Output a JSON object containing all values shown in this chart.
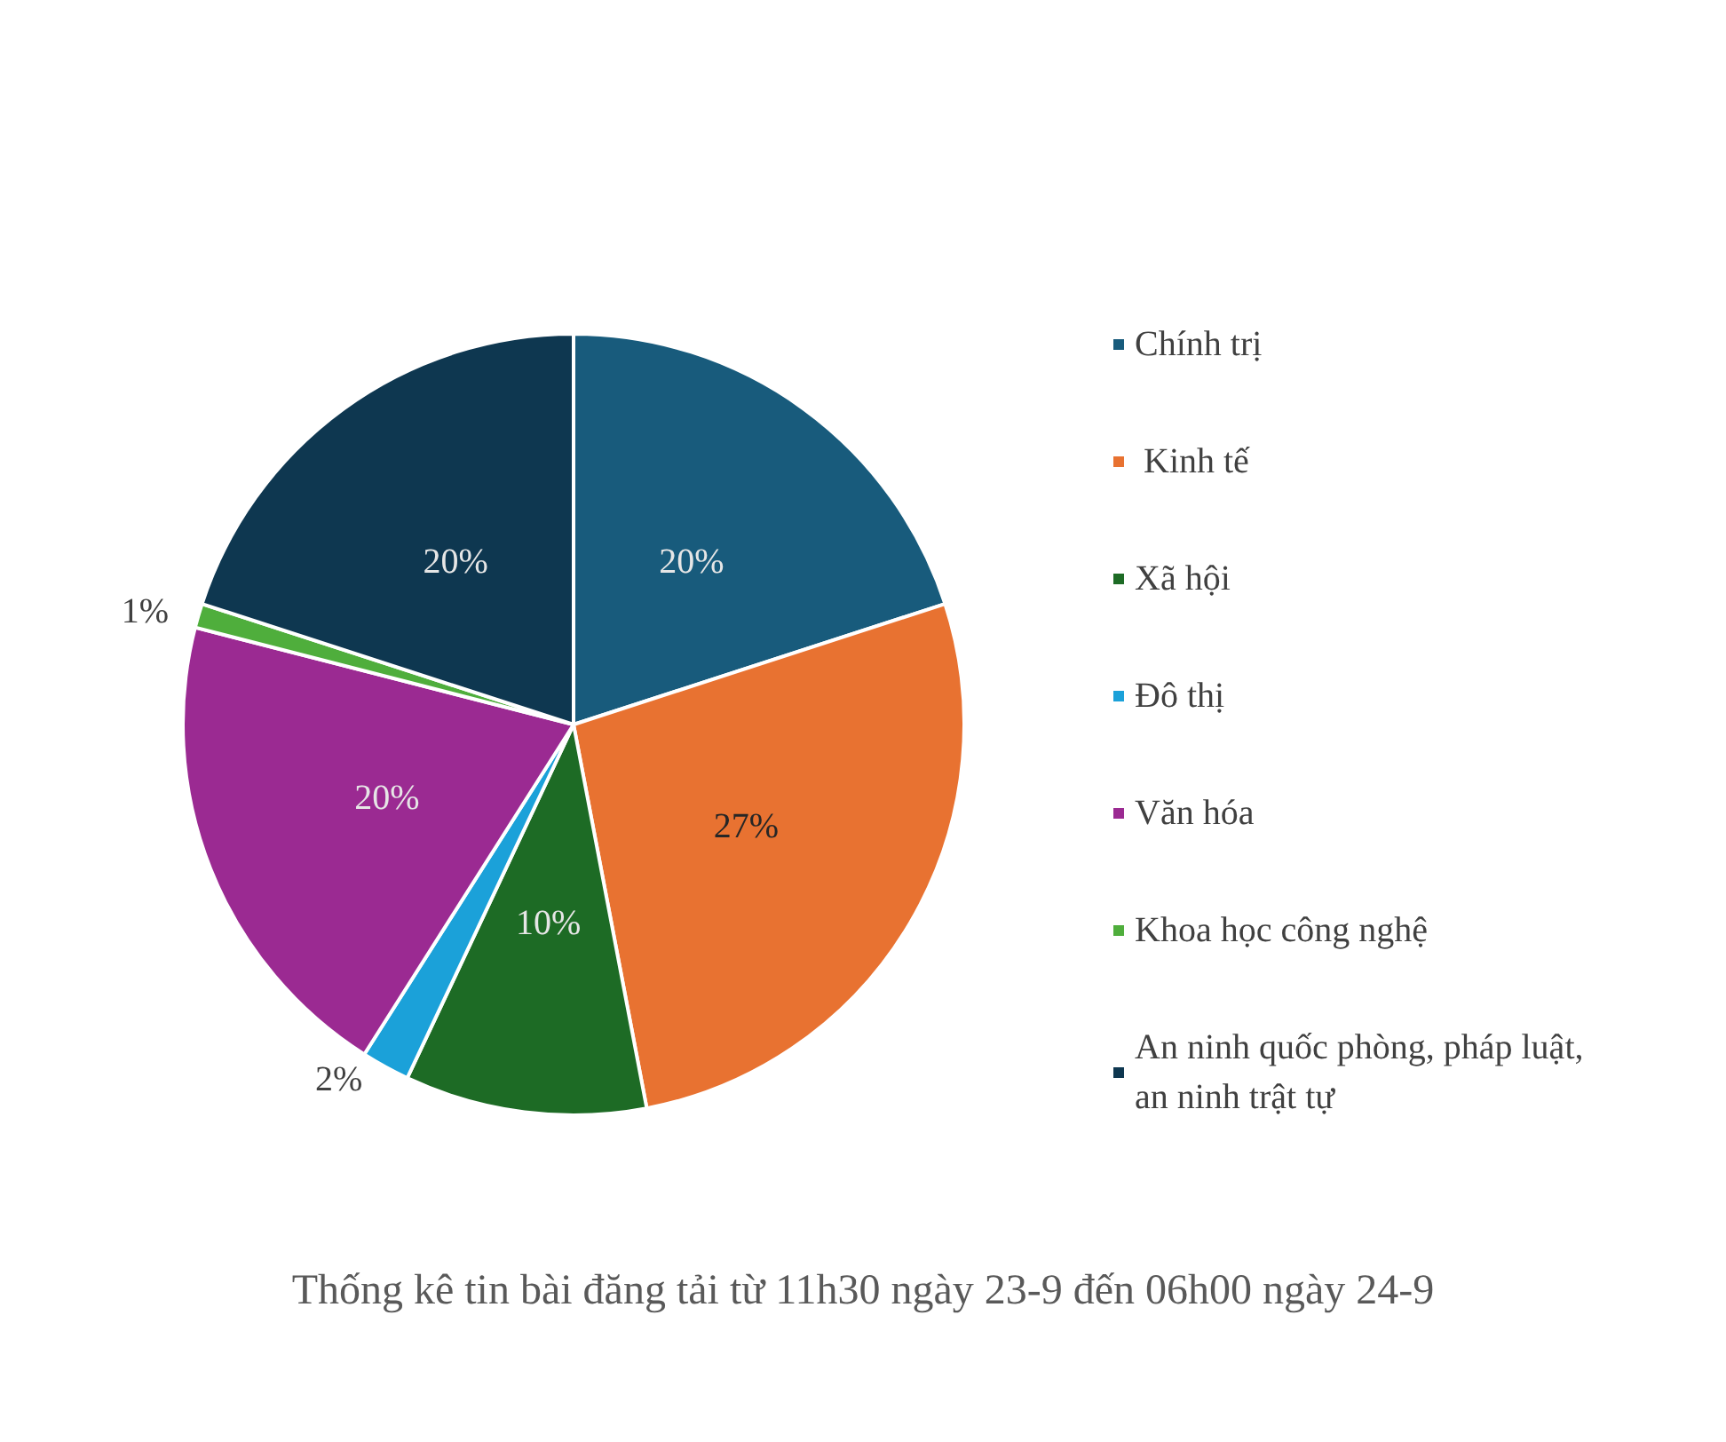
{
  "chart_data": {
    "type": "pie",
    "title": "Thống kê tin bài đăng tải từ 11h30 ngày 23-9 đến 06h00 ngày 24-9",
    "categories": [
      "Chính trị",
      " Kinh tế",
      "Xã hội",
      "Đô thị",
      "Văn hóa",
      "Khoa học công nghệ",
      "An ninh quốc phòng, pháp luật, an ninh trật tự"
    ],
    "values": [
      20,
      27,
      10,
      2,
      20,
      1,
      20
    ],
    "colors": [
      "#185b7c",
      "#e87231",
      "#1d6b25",
      "#1ba1d9",
      "#9b2a92",
      "#4fae3c",
      "#0e3750"
    ],
    "value_labels": [
      "20%",
      "27%",
      "10%",
      "2%",
      "20%",
      "1%",
      "20%"
    ],
    "legend": "right"
  }
}
